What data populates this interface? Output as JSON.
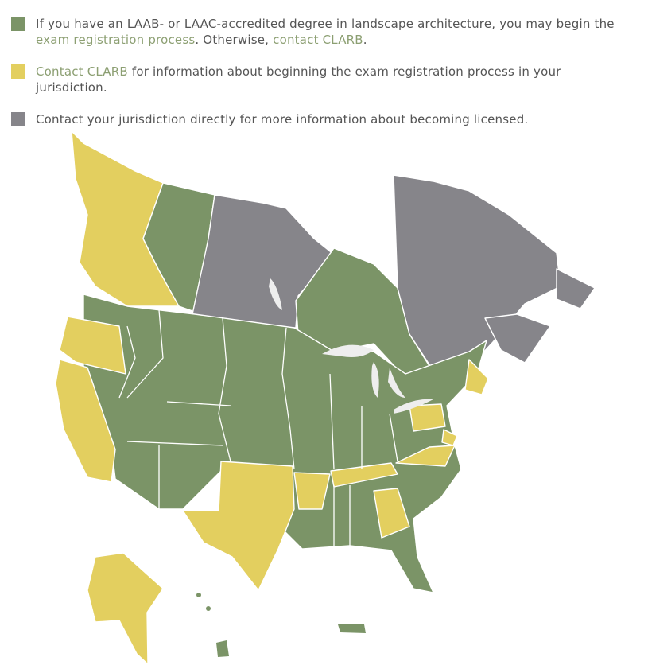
{
  "legend": [
    {
      "color": "#7b9467",
      "parts": [
        "If you have an LAAB- or LAAC-accredited degree in landscape architecture, you may begin the ",
        "exam registration process",
        ". Otherwise, ",
        "contact CLARB",
        "."
      ]
    },
    {
      "color": "#e3cf5f",
      "parts": [
        "Contact CLARB",
        " for information about beginning the exam registration process in your jurisdiction."
      ]
    },
    {
      "color": "#86858a",
      "parts": [
        "Contact your jurisdiction directly for more information about becoming licensed."
      ]
    }
  ]
}
